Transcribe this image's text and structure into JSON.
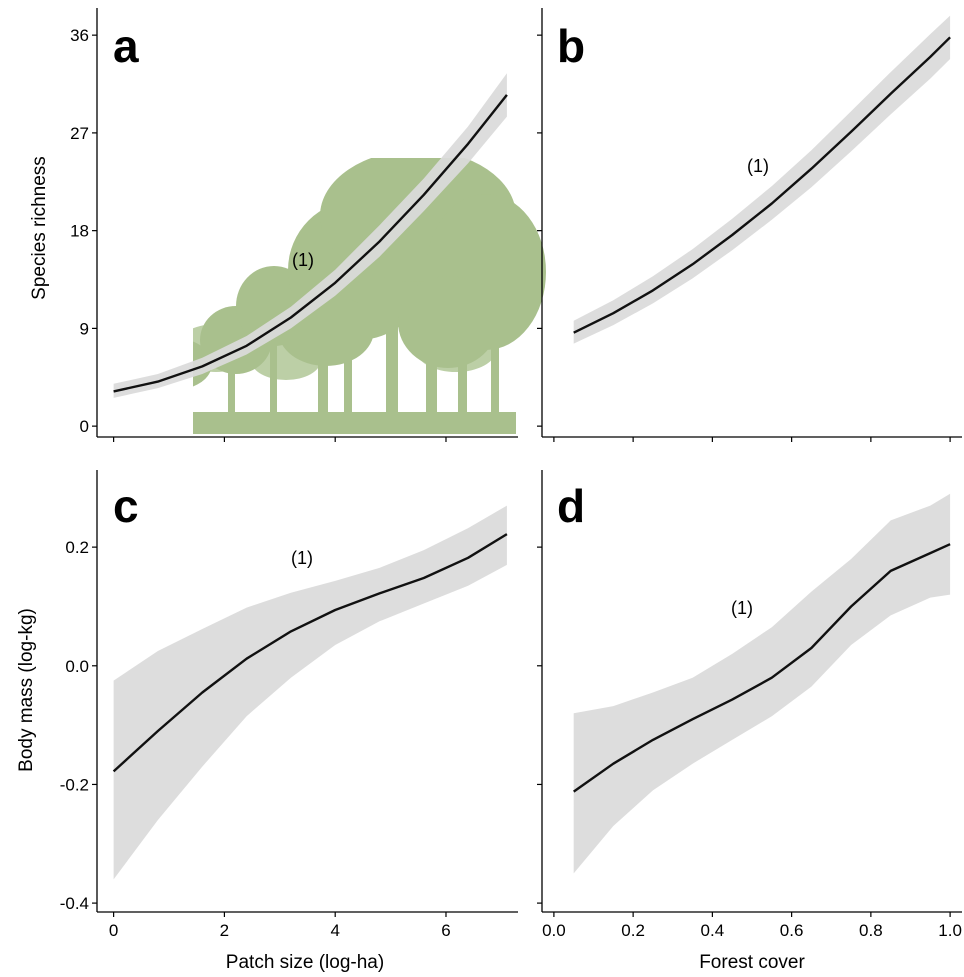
{
  "colors": {
    "band": "#dadada",
    "line": "#111111",
    "silhouette": "#a9c08d",
    "silhouette_light": "#bccfa6"
  },
  "icons": [
    "forest-silhouette-icon"
  ],
  "x_axis_titles": {
    "left": "Patch size (log-ha)",
    "right": "Forest cover"
  },
  "y_axis_titles": {
    "top": "Species richness",
    "bottom": "Body mass (log-kg)"
  },
  "chart_data": [
    {
      "panel": "a",
      "type": "line",
      "annotation": "(1)",
      "xlabel": "",
      "ylabel": "Species richness",
      "xlim": [
        -0.3,
        7.3
      ],
      "ylim": [
        -1.0,
        38.5
      ],
      "xticks": [
        0,
        2,
        4,
        6
      ],
      "xtick_labels": [],
      "yticks": [
        0,
        9,
        18,
        27,
        36
      ],
      "ytick_labels": [
        "0",
        "9",
        "18",
        "27",
        "36"
      ],
      "grid": false,
      "x": [
        0,
        0.8,
        1.6,
        2.4,
        3.2,
        4.0,
        4.8,
        5.6,
        6.4,
        7.1
      ],
      "y": [
        3.2,
        4.1,
        5.5,
        7.4,
        10.0,
        13.2,
        17.0,
        21.3,
        26.0,
        30.5
      ],
      "lower": [
        2.6,
        3.5,
        4.8,
        6.6,
        9.0,
        12.0,
        15.6,
        19.8,
        24.2,
        28.5
      ],
      "upper": [
        3.9,
        4.8,
        6.3,
        8.3,
        11.0,
        14.4,
        18.5,
        22.8,
        27.6,
        32.5
      ]
    },
    {
      "panel": "b",
      "type": "line",
      "annotation": "(1)",
      "xlabel": "",
      "ylabel": "",
      "xlim": [
        -0.03,
        1.03
      ],
      "ylim": [
        -1.0,
        38.5
      ],
      "xticks": [
        0.0,
        0.2,
        0.4,
        0.6,
        0.8,
        1.0
      ],
      "xtick_labels": [],
      "yticks": [
        0,
        9,
        18,
        27,
        36
      ],
      "ytick_labels": [],
      "grid": false,
      "x": [
        0.05,
        0.15,
        0.25,
        0.35,
        0.45,
        0.55,
        0.65,
        0.75,
        0.85,
        0.95,
        1.0
      ],
      "y": [
        8.6,
        10.4,
        12.5,
        14.9,
        17.6,
        20.5,
        23.7,
        27.1,
        30.6,
        34.0,
        35.8
      ],
      "lower": [
        7.6,
        9.3,
        11.3,
        13.6,
        16.2,
        19.0,
        22.0,
        25.3,
        28.7,
        32.0,
        33.8
      ],
      "upper": [
        9.7,
        11.6,
        13.8,
        16.3,
        19.1,
        22.1,
        25.4,
        29.0,
        32.6,
        36.1,
        37.8
      ]
    },
    {
      "panel": "c",
      "type": "line",
      "annotation": "(1)",
      "xlabel": "Patch size (log-ha)",
      "ylabel": "Body mass (log-kg)",
      "xlim": [
        -0.3,
        7.3
      ],
      "ylim": [
        -0.415,
        0.33
      ],
      "xticks": [
        0,
        2,
        4,
        6
      ],
      "xtick_labels": [
        "0",
        "2",
        "4",
        "6"
      ],
      "yticks": [
        -0.4,
        -0.2,
        0.0,
        0.2
      ],
      "ytick_labels": [
        "-0.4",
        "-0.2",
        "0.0",
        "0.2"
      ],
      "grid": false,
      "x": [
        0,
        0.8,
        1.6,
        2.4,
        3.2,
        4.0,
        4.8,
        5.6,
        6.4,
        7.1
      ],
      "y": [
        -0.178,
        -0.11,
        -0.045,
        0.012,
        0.058,
        0.094,
        0.122,
        0.148,
        0.182,
        0.222
      ],
      "lower": [
        -0.36,
        -0.26,
        -0.17,
        -0.085,
        -0.02,
        0.035,
        0.075,
        0.105,
        0.135,
        0.17
      ],
      "upper": [
        -0.025,
        0.025,
        0.062,
        0.098,
        0.123,
        0.143,
        0.165,
        0.195,
        0.232,
        0.27
      ]
    },
    {
      "panel": "d",
      "type": "line",
      "annotation": "(1)",
      "xlabel": "Forest cover",
      "ylabel": "",
      "xlim": [
        -0.03,
        1.03
      ],
      "ylim": [
        -0.415,
        0.33
      ],
      "xticks": [
        0.0,
        0.2,
        0.4,
        0.6,
        0.8,
        1.0
      ],
      "xtick_labels": [
        "0.0",
        "0.2",
        "0.4",
        "0.6",
        "0.8",
        "1.0"
      ],
      "yticks": [
        -0.4,
        -0.2,
        0.0,
        0.2
      ],
      "ytick_labels": [],
      "grid": false,
      "x": [
        0.05,
        0.15,
        0.25,
        0.35,
        0.45,
        0.55,
        0.65,
        0.75,
        0.85,
        0.95,
        1.0
      ],
      "y": [
        -0.212,
        -0.165,
        -0.125,
        -0.09,
        -0.057,
        -0.02,
        0.03,
        0.1,
        0.16,
        0.19,
        0.205
      ],
      "lower": [
        -0.35,
        -0.27,
        -0.21,
        -0.165,
        -0.125,
        -0.085,
        -0.035,
        0.035,
        0.085,
        0.115,
        0.12
      ],
      "upper": [
        -0.08,
        -0.068,
        -0.045,
        -0.02,
        0.02,
        0.065,
        0.125,
        0.18,
        0.245,
        0.27,
        0.29
      ]
    }
  ]
}
